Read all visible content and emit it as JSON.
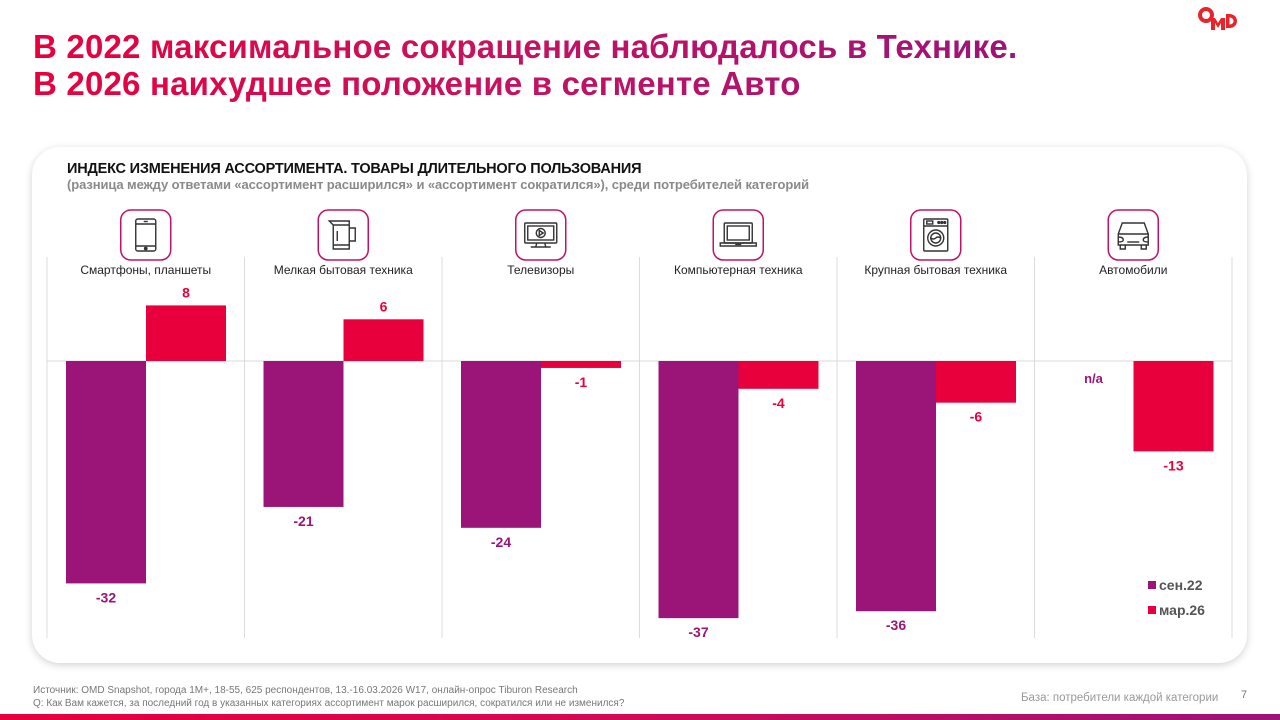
{
  "header": {
    "title_line1": "В 2022 максимальное сокращение наблюдалось в Технике.",
    "title_line2": "В 2026 наихудшее положение в сегменте Авто",
    "logo": "OMD"
  },
  "colors": {
    "series_sep22": "#9b1478",
    "series_mar26": "#e8003d",
    "icon_border": "#c0126a",
    "accent_red": "#e8003d",
    "accent_purple": "#9b1478"
  },
  "chart_data": {
    "type": "bar",
    "title": "ИНДЕКС ИЗМЕНЕНИЯ АССОРТИМЕНТА. ТОВАРЫ ДЛИТЕЛЬНОГО ПОЛЬЗОВАНИЯ",
    "subtitle": "(разница между ответами «ассортимент расширился» и «ассортимент сократился»), среди потребителей категорий",
    "xlabel": "",
    "ylabel": "",
    "ylim": [
      -40,
      10
    ],
    "grid": false,
    "legend_position": "bottom-right",
    "categories": [
      "Смартфоны, планшеты",
      "Мелкая бытовая техника",
      "Телевизоры",
      "Компьютерная техника",
      "Крупная бытовая техника",
      "Автомобили"
    ],
    "category_icons": [
      "smartphone-icon",
      "kettle-icon",
      "tv-icon",
      "laptop-icon",
      "washing-machine-icon",
      "car-icon"
    ],
    "series": [
      {
        "name": "сен.22",
        "values": [
          -32,
          -21,
          -24,
          -37,
          -36,
          null
        ],
        "labels": [
          "-32",
          "-21",
          "-24",
          "-37",
          "-36",
          "n/a"
        ]
      },
      {
        "name": "мар.26",
        "values": [
          8,
          6,
          -1,
          -4,
          -6,
          -13
        ],
        "labels": [
          "8",
          "6",
          "-1",
          "-4",
          "-6",
          "-13"
        ]
      }
    ]
  },
  "footer": {
    "source": "Источник: OMD Snapshot, города 1M+, 18-55, 625  респондентов, 13.-16.03.2026 W17, онлайн-опрос Tiburon Research",
    "question": "Q: Как Вам кажется, за последний год в указанных категориях ассортимент марок расширился, сократился или не изменился?",
    "base": "База: потребители каждой категории",
    "page_number": "7"
  }
}
